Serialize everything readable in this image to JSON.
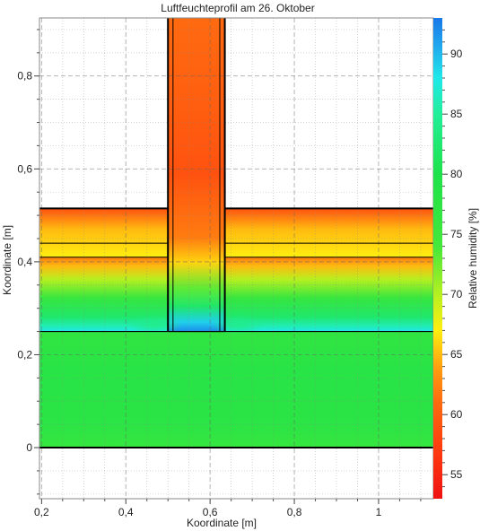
{
  "chart_data": {
    "type": "heatmap",
    "title": "Luftfeuchteprofil am 26. Oktober",
    "xlabel": "Koordinate [m]",
    "ylabel": "Koordinate [m]",
    "colorbar_label": "Relative humidity [%]",
    "xlim": [
      0.195,
      1.13
    ],
    "ylim": [
      -0.11,
      0.925
    ],
    "xticks": [
      {
        "value": 0.2,
        "label": "0,2"
      },
      {
        "value": 0.4,
        "label": "0,4"
      },
      {
        "value": 0.6,
        "label": "0,6"
      },
      {
        "value": 0.8,
        "label": "0,8"
      },
      {
        "value": 1.0,
        "label": "1"
      }
    ],
    "yticks": [
      {
        "value": 0.0,
        "label": "0"
      },
      {
        "value": 0.2,
        "label": "0,2"
      },
      {
        "value": 0.4,
        "label": "0,4"
      },
      {
        "value": 0.6,
        "label": "0,6"
      },
      {
        "value": 0.8,
        "label": "0,8"
      }
    ],
    "colorbar": {
      "range": [
        53,
        93
      ],
      "ticks": [
        {
          "value": 55,
          "label": "55"
        },
        {
          "value": 60,
          "label": "60"
        },
        {
          "value": 65,
          "label": "65"
        },
        {
          "value": 70,
          "label": "70"
        },
        {
          "value": 75,
          "label": "75"
        },
        {
          "value": 80,
          "label": "80"
        },
        {
          "value": 85,
          "label": "85"
        },
        {
          "value": 90,
          "label": "90"
        }
      ],
      "stops": [
        {
          "value": 53,
          "color": "#ee1111"
        },
        {
          "value": 57,
          "color": "#ff3a10"
        },
        {
          "value": 61,
          "color": "#ff6a10"
        },
        {
          "value": 64,
          "color": "#ffa010"
        },
        {
          "value": 67,
          "color": "#ffee10"
        },
        {
          "value": 70,
          "color": "#b6f020"
        },
        {
          "value": 74,
          "color": "#44e83a"
        },
        {
          "value": 80,
          "color": "#1ee24a"
        },
        {
          "value": 85,
          "color": "#22ee99"
        },
        {
          "value": 88,
          "color": "#20e8ea"
        },
        {
          "value": 91,
          "color": "#20a0ee"
        },
        {
          "value": 93,
          "color": "#1878e8"
        }
      ]
    },
    "regions": [
      {
        "name": "base-slab",
        "x": [
          0.195,
          1.13
        ],
        "y": [
          0.0,
          0.25
        ],
        "rh_edge": 77,
        "rh_center": 78.5
      },
      {
        "name": "insulation-layer",
        "x": [
          0.195,
          1.13
        ],
        "y": [
          0.25,
          0.41
        ],
        "rh_bottom": 88,
        "rh_top": 62
      },
      {
        "name": "middle-layer",
        "x": [
          0.195,
          1.13
        ],
        "y": [
          0.41,
          0.44
        ],
        "rh_bottom": 67,
        "rh_top": 66
      },
      {
        "name": "top-layer",
        "x": [
          0.195,
          1.13
        ],
        "y": [
          0.44,
          0.515
        ],
        "rh_bottom": 66,
        "rh_top": 59
      },
      {
        "name": "column",
        "x": [
          0.5,
          0.635
        ],
        "y": [
          0.25,
          0.925
        ],
        "rh_bottom": 92,
        "rh_top": 61
      }
    ],
    "grid": true
  }
}
